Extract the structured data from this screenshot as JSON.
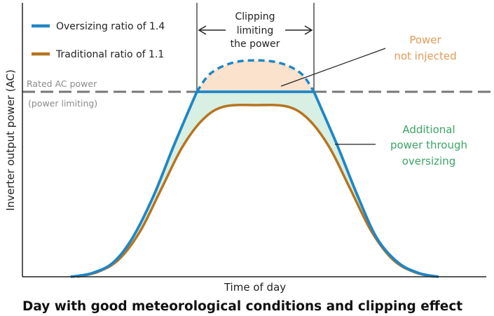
{
  "chart_data": {
    "type": "line",
    "title": "Day with good meteorological conditions and clipping effect",
    "xlabel": "Time of day",
    "ylabel": "Inverter output power (AC)",
    "xlim": [
      0,
      24
    ],
    "ylim": [
      0,
      150
    ],
    "rated_power": 100,
    "rated_label_1": "Rated AC power",
    "rated_label_2": "(power limiting)",
    "colors": {
      "blue": "#1f86c6",
      "brown": "#b6741f",
      "rated": "#777777",
      "peach": "#fbe2cd",
      "green": "#d8efe3",
      "orange": "#e39a55",
      "greentext": "#3aa466"
    },
    "series": [
      {
        "name": "Oversizing ratio of 1.4",
        "rise": [
          [
            2.5,
            0
          ],
          [
            3.6,
            1.9
          ],
          [
            4.7,
            7.6
          ],
          [
            5.7,
            20.8
          ],
          [
            6.8,
            43.6
          ],
          [
            7.9,
            72
          ],
          [
            9.05,
            100
          ]
        ],
        "flat": [
          [
            9.05,
            100
          ],
          [
            15.13,
            100
          ]
        ],
        "fall": [
          [
            15.13,
            100
          ],
          [
            16.3,
            72
          ],
          [
            17.4,
            43.6
          ],
          [
            18.4,
            20.8
          ],
          [
            19.5,
            7.6
          ],
          [
            20.6,
            1.9
          ],
          [
            21.6,
            0
          ]
        ],
        "clipped": [
          [
            9.05,
            100
          ],
          [
            9.75,
            109.8
          ],
          [
            10.84,
            115.5
          ],
          [
            12.07,
            117
          ],
          [
            13.38,
            115.5
          ],
          [
            14.47,
            109.8
          ],
          [
            15.13,
            100
          ]
        ]
      },
      {
        "name": "Traditional ratio of 1.1",
        "points": [
          [
            2.84,
            0
          ],
          [
            3.93,
            2.7
          ],
          [
            5.02,
            9.5
          ],
          [
            6.11,
            24.6
          ],
          [
            7.2,
            47.3
          ],
          [
            8.29,
            70
          ],
          [
            9.38,
            85.2
          ],
          [
            10.47,
            92
          ],
          [
            12.11,
            92.8
          ],
          [
            13.75,
            92
          ],
          [
            14.84,
            85.2
          ],
          [
            15.93,
            70
          ],
          [
            17.02,
            47.3
          ],
          [
            18.11,
            24.6
          ],
          [
            19.2,
            9.5
          ],
          [
            20.29,
            2.7
          ],
          [
            21.38,
            0
          ]
        ]
      }
    ],
    "annotations": {
      "clipping": [
        "Clipping",
        "limiting",
        "the power"
      ],
      "not_injected": [
        "Power",
        "not injected"
      ],
      "additional": [
        "Additional",
        "power through",
        "oversizing"
      ]
    },
    "legend_position": "top-left",
    "grid": false
  }
}
